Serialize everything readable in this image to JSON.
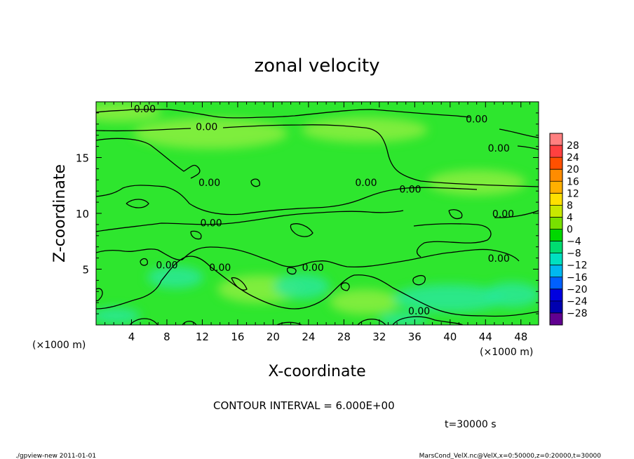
{
  "chart_data": {
    "type": "heatmap",
    "title": "zonal velocity",
    "xlabel": "X-coordinate",
    "ylabel": "Z-coordinate",
    "x_unit_label": "(×1000 m)",
    "y_unit_label": "(×1000 m)",
    "xlim": [
      0,
      50
    ],
    "ylim": [
      0,
      20
    ],
    "x_ticks": [
      4,
      8,
      12,
      16,
      20,
      24,
      28,
      32,
      36,
      40,
      44,
      48
    ],
    "y_ticks": [
      5,
      10,
      15
    ],
    "contour_interval_text": "CONTOUR INTERVAL = 6.000E+00",
    "time_text": "t=30000 s",
    "contour_labels": [
      {
        "text": "0.00",
        "x": 5.5,
        "z": 19.3
      },
      {
        "text": "0.00",
        "x": 12.5,
        "z": 17.7
      },
      {
        "text": "0.00",
        "x": 43.0,
        "z": 18.4
      },
      {
        "text": "0.00",
        "x": 45.5,
        "z": 15.8
      },
      {
        "text": "0.00",
        "x": 12.8,
        "z": 12.7
      },
      {
        "text": "0.00",
        "x": 30.5,
        "z": 12.7
      },
      {
        "text": "0.00",
        "x": 35.5,
        "z": 12.1
      },
      {
        "text": "0.00",
        "x": 13.0,
        "z": 9.1
      },
      {
        "text": "0.00",
        "x": 46.0,
        "z": 9.9
      },
      {
        "text": "0.00",
        "x": 8.0,
        "z": 5.3
      },
      {
        "text": "0.00",
        "x": 14.0,
        "z": 5.1
      },
      {
        "text": "0.00",
        "x": 24.5,
        "z": 5.1
      },
      {
        "text": "0.00",
        "x": 45.5,
        "z": 5.9
      },
      {
        "text": "0.00",
        "x": 36.5,
        "z": 1.2
      }
    ],
    "colorbar": {
      "levels": [
        "28",
        "24",
        "20",
        "16",
        "12",
        "8",
        "4",
        "0",
        "-4",
        "-8",
        "-12",
        "-16",
        "-20",
        "-24",
        "-28"
      ],
      "colors": [
        "#ff8080",
        "#ff4040",
        "#ff5000",
        "#ff8c00",
        "#ffb000",
        "#ffe000",
        "#c8e800",
        "#78e000",
        "#00d800",
        "#00dc70",
        "#00e0c0",
        "#00b8f0",
        "#0060ff",
        "#0000e0",
        "#0000b0",
        "#600090"
      ]
    },
    "field_colors": {
      "base": "#2ee62e",
      "positive": "#8cee40",
      "negative": "#28e898"
    },
    "contour_color": "#000000"
  },
  "footer": {
    "left": "./gpview-new   2011-01-01",
    "right": "MarsCond_VelX.nc@VelX,x=0:50000,z=0:20000,t=30000"
  }
}
